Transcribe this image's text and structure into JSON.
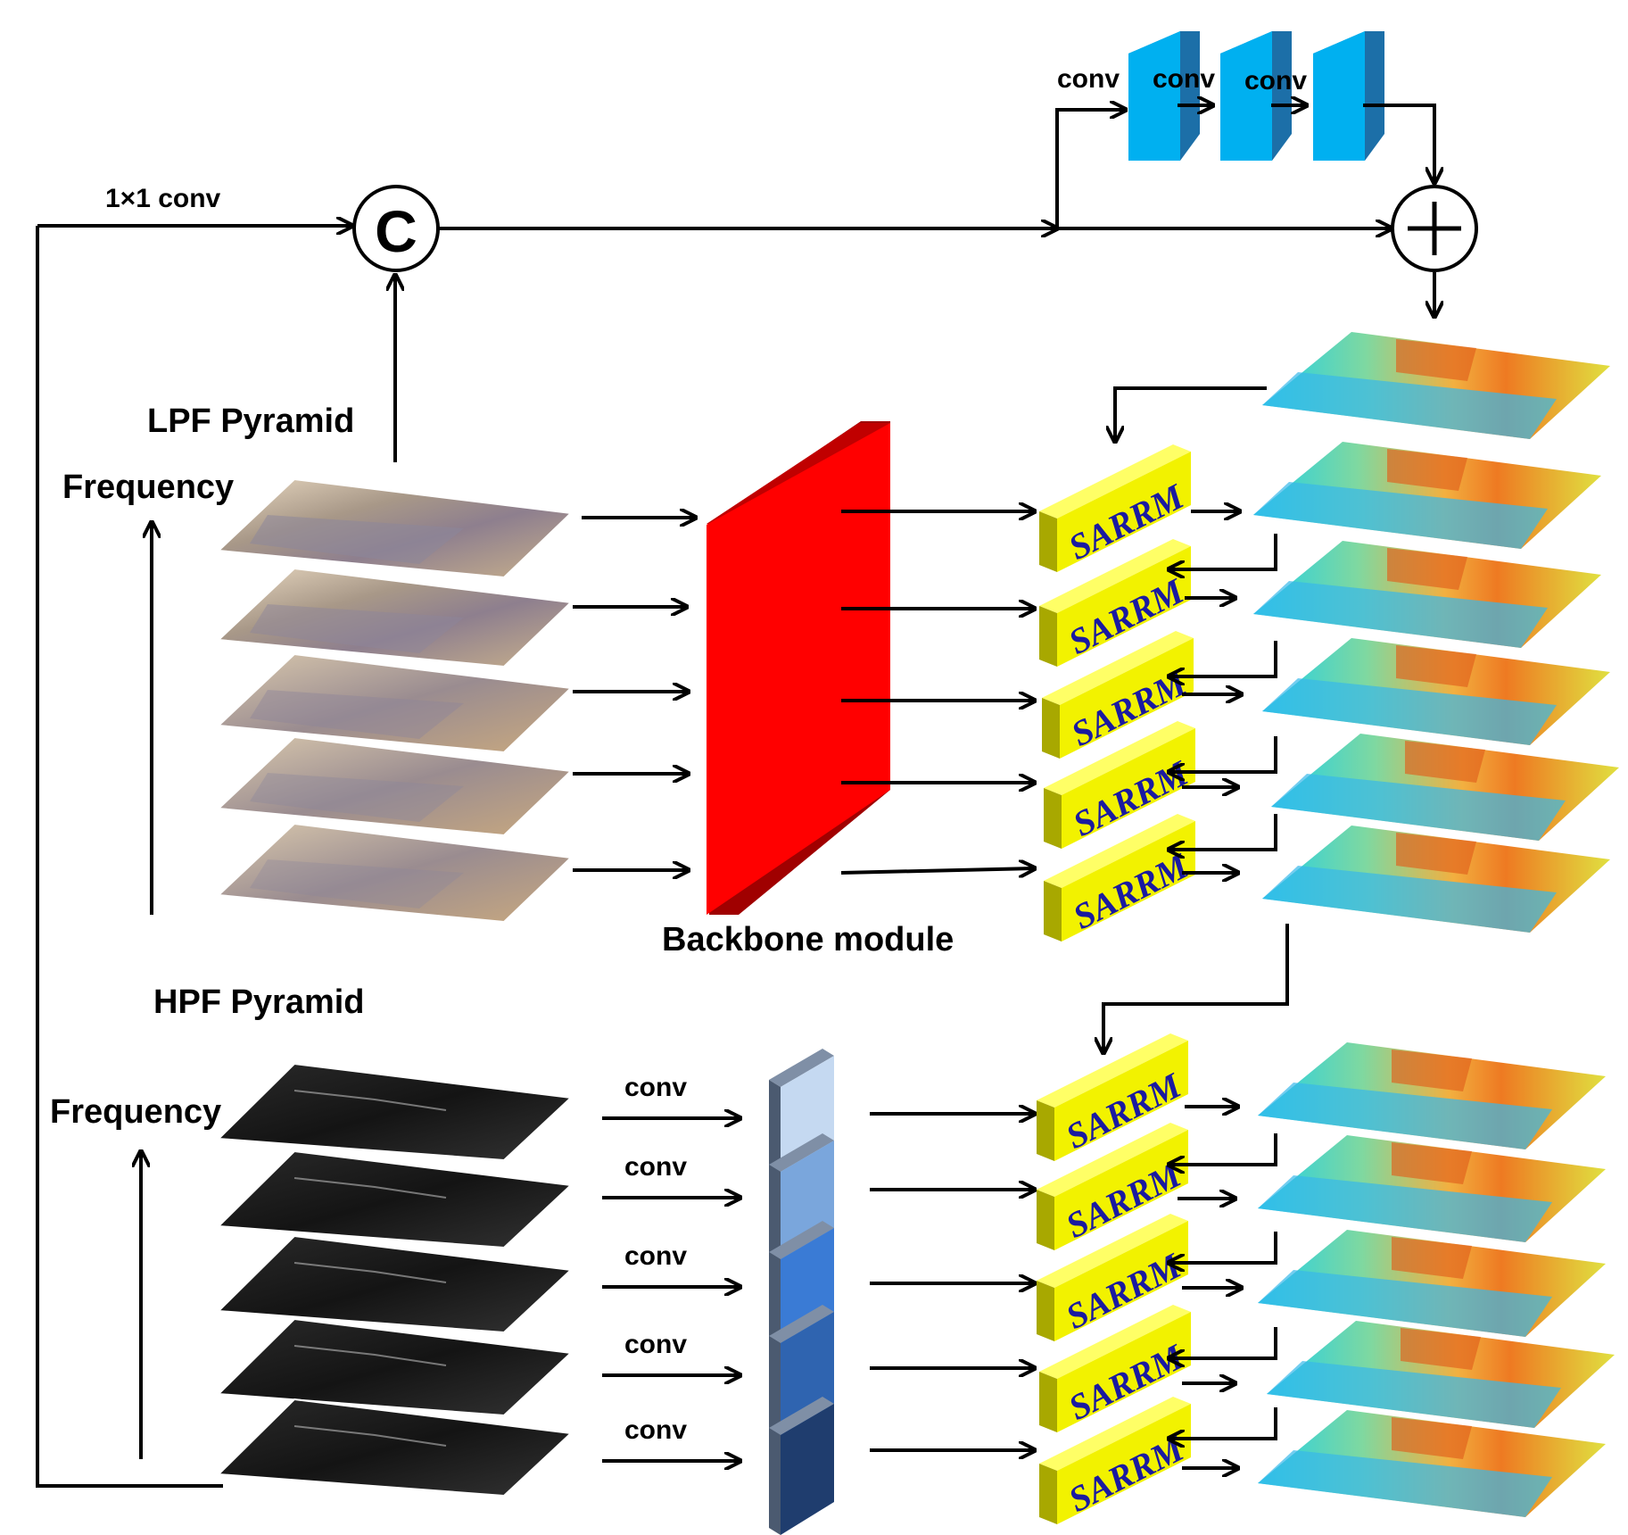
{
  "labels": {
    "lpf_pyramid": "LPF Pyramid",
    "hpf_pyramid": "HPF Pyramid",
    "frequency_top": "Frequency",
    "frequency_bottom": "Frequency",
    "backbone": "Backbone module",
    "one_by_one_conv": "1×1 conv",
    "concat_symbol": "C",
    "add_symbol": "+",
    "top_conv": [
      "conv",
      "conv",
      "conv"
    ],
    "hpf_conv": [
      "conv",
      "conv",
      "conv",
      "conv",
      "conv"
    ],
    "sarrm": "SARRM"
  },
  "colors": {
    "backbone_front": "#ff0000",
    "backbone_side": "#a00000",
    "sarrm_front": "#f2f200",
    "sarrm_top": "#ffff66",
    "sarrm_side": "#a8a800",
    "top_conv_front": "#00b0f0",
    "top_conv_side": "#1c6fa8",
    "hpf_blocks": [
      "#c5d9f1",
      "#7aa6dc",
      "#3a7bd5",
      "#2f64b0",
      "#1f3d6e"
    ],
    "arrow": "#000000"
  }
}
